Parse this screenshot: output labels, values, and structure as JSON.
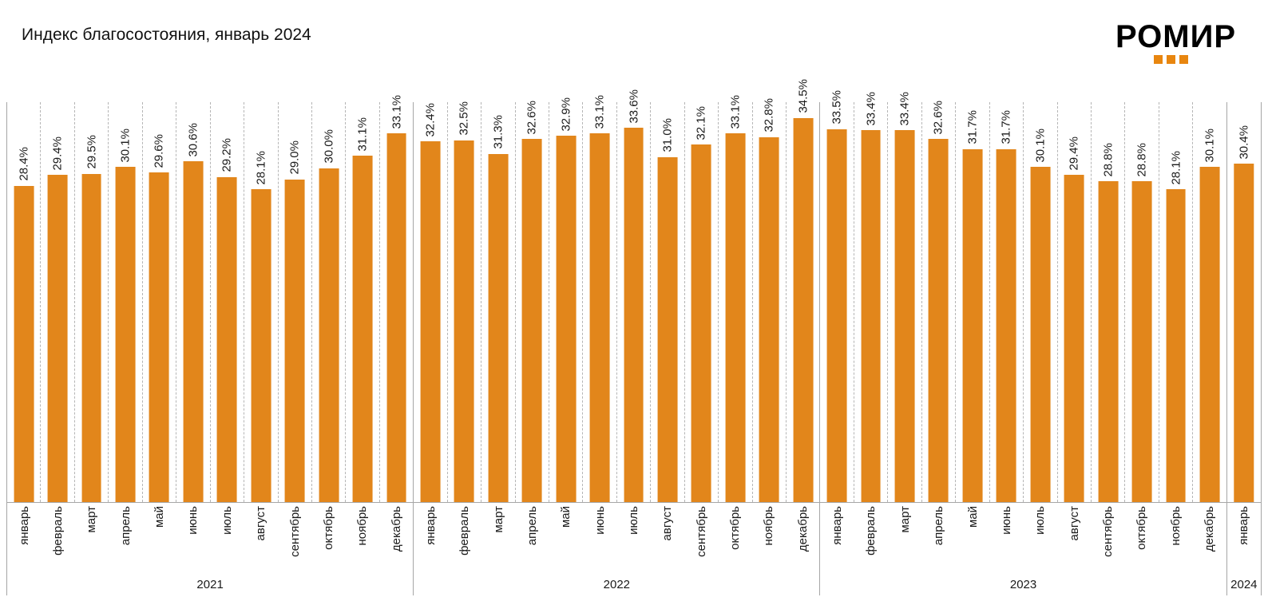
{
  "header": {
    "title": "Индекс благосостояния, январь 2024",
    "logo_text": "РОМИР"
  },
  "colors": {
    "accent": "#E8860F",
    "bar": "#E2861B",
    "grid_solid": "#a6a6a6",
    "grid_dashed": "#b5b5b5"
  },
  "chart_data": {
    "type": "bar",
    "title": "Индекс благосостояния, январь 2024",
    "unit": "%",
    "ylim": [
      0,
      36
    ],
    "grid": "dashed-vertical-between-categories",
    "value_labels": "rotated-90-above-bars",
    "groups": [
      {
        "year": "2021",
        "months": [
          "январь",
          "февраль",
          "март",
          "апрель",
          "май",
          "июнь",
          "июль",
          "август",
          "сентябрь",
          "октябрь",
          "ноябрь",
          "декабрь"
        ],
        "values": [
          28.4,
          29.4,
          29.5,
          30.1,
          29.6,
          30.6,
          29.2,
          28.1,
          29.0,
          30.0,
          31.1,
          33.1
        ]
      },
      {
        "year": "2022",
        "months": [
          "январь",
          "февраль",
          "март",
          "апрель",
          "май",
          "июнь",
          "июль",
          "август",
          "сентябрь",
          "октябрь",
          "ноябрь",
          "декабрь"
        ],
        "values": [
          32.4,
          32.5,
          31.3,
          32.6,
          32.9,
          33.1,
          33.6,
          31.0,
          32.1,
          33.1,
          32.8,
          34.5
        ]
      },
      {
        "year": "2023",
        "months": [
          "январь",
          "февраль",
          "март",
          "апрель",
          "май",
          "июнь",
          "июль",
          "август",
          "сентябрь",
          "октябрь",
          "ноябрь",
          "декабрь"
        ],
        "values": [
          33.5,
          33.4,
          33.4,
          32.6,
          31.7,
          31.7,
          30.1,
          29.4,
          28.8,
          28.8,
          28.1,
          30.1
        ]
      },
      {
        "year": "2024",
        "months": [
          "январь"
        ],
        "values": [
          30.4
        ]
      }
    ]
  }
}
